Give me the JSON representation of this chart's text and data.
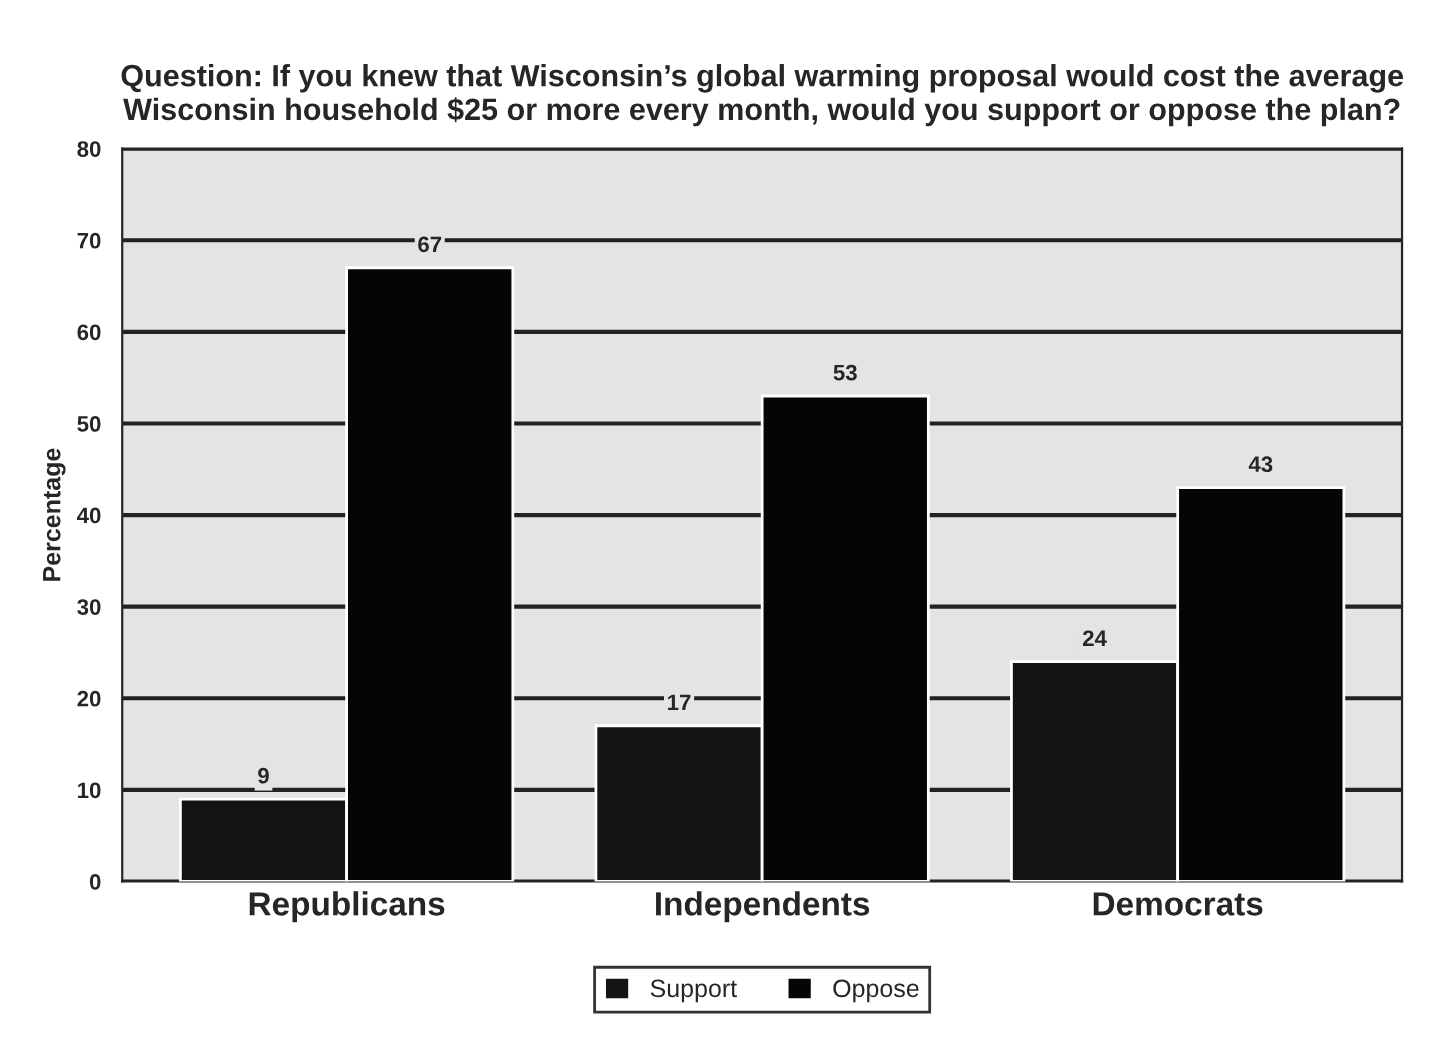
{
  "chart_data": {
    "type": "bar",
    "title": "Question: If you knew that Wisconsin’s global warming proposal would cost the average Wisconsin household $25 or more every month, would you support or oppose the plan?",
    "ylabel": "Percentage",
    "categories": [
      "Republicans",
      "Independents",
      "Democrats"
    ],
    "series": [
      {
        "name": "Support",
        "color": "#141414",
        "values": [
          9,
          17,
          24
        ]
      },
      {
        "name": "Oppose",
        "color": "#050505",
        "values": [
          67,
          53,
          43
        ]
      }
    ],
    "ylim": [
      0,
      80
    ],
    "yticks": [
      0,
      10,
      20,
      30,
      40,
      50,
      60,
      70,
      80
    ],
    "grid": "y",
    "legend": "bottom",
    "data_labels": true
  }
}
